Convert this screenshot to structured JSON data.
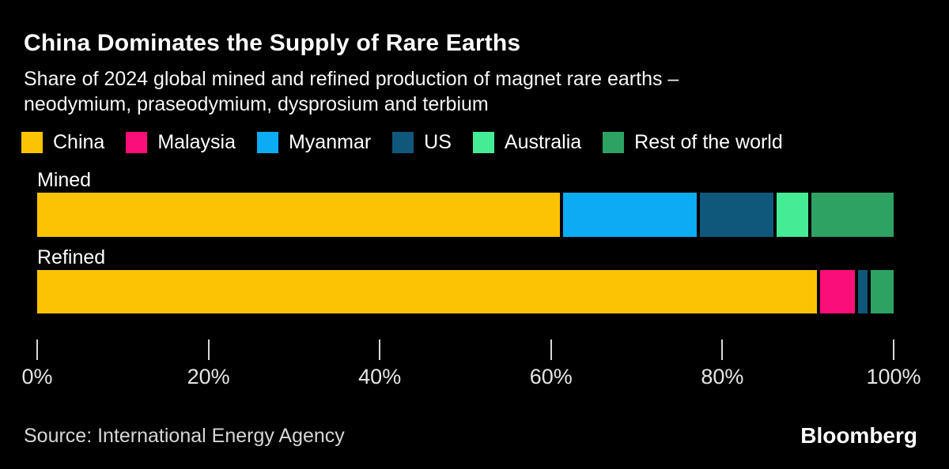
{
  "header": {
    "title": "China Dominates the Supply of Rare Earths",
    "subtitle_line1": "Share of 2024 global mined and refined production of magnet rare earths –",
    "subtitle_line2": "neodymium, praseodymium, dysprosium and terbium"
  },
  "footer": {
    "source": "Source: International Energy Agency",
    "brand": "Bloomberg"
  },
  "colors": {
    "background": "#000000",
    "title_text": "#ffffff",
    "axis_text": "#e5e5e5",
    "china": "#FCC305",
    "malaysia": "#FA0E77",
    "myanmar": "#0BACF3",
    "us": "#10587B",
    "australia": "#44EC95",
    "rest_of_world": "#2DA263"
  },
  "chart_data": {
    "type": "bar",
    "orientation": "horizontal",
    "stacked": true,
    "unit": "%",
    "title": "China Dominates the Supply of Rare Earths",
    "subtitle": "Share of 2024 global mined and refined production of magnet rare earths – neodymium, praseodymium, dysprosium and terbium",
    "categories": [
      "Mined",
      "Refined"
    ],
    "series": [
      {
        "name": "China",
        "color": "#FCC305",
        "values": [
          61,
          91
        ]
      },
      {
        "name": "Malaysia",
        "color": "#FA0E77",
        "values": [
          0,
          4.5
        ]
      },
      {
        "name": "Myanmar",
        "color": "#0BACF3",
        "values": [
          16,
          0
        ]
      },
      {
        "name": "US",
        "color": "#10587B",
        "values": [
          9,
          1.5
        ]
      },
      {
        "name": "Australia",
        "color": "#44EC95",
        "values": [
          4,
          0
        ]
      },
      {
        "name": "Rest of the world",
        "color": "#2DA263",
        "values": [
          10,
          3
        ]
      }
    ],
    "x_ticks": [
      "0%",
      "20%",
      "40%",
      "60%",
      "80%",
      "100%"
    ],
    "xlim": [
      0,
      100
    ],
    "legend_position": "top",
    "grid": false
  }
}
